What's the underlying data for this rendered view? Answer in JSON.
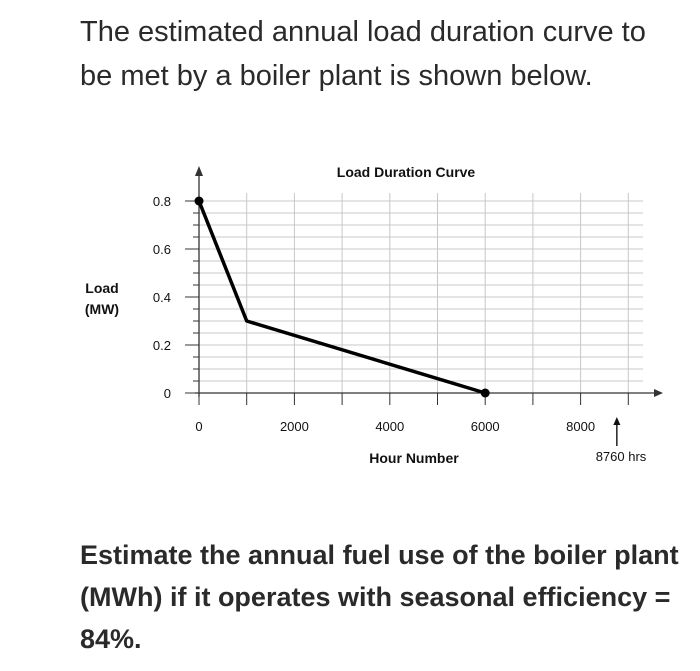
{
  "intro_text": "The estimated annual load duration curve to be met by a boiler plant is shown below.",
  "question_text": "Estimate the annual fuel use of the boiler plant (MWh) if it operates with seasonal efficiency = 84%.",
  "chart_data": {
    "type": "line",
    "title": "Load Duration Curve",
    "xlabel": "Hour Number",
    "ylabel_line1": "Load",
    "ylabel_line2": "(MW)",
    "x_tick_labels": [
      "0",
      "2000",
      "4000",
      "6000",
      "8000"
    ],
    "y_tick_labels": [
      "0",
      "0.2",
      "0.4",
      "0.6",
      "0.8"
    ],
    "annotation": "8760 hrs",
    "annotation_x": 8760,
    "xlim": [
      0,
      9500
    ],
    "ylim": [
      0,
      0.85
    ],
    "grid": true,
    "series": [
      {
        "x": [
          0,
          1000,
          6000
        ],
        "y": [
          0.8,
          0.3,
          0.0
        ]
      }
    ],
    "colors": {
      "line": "#000000",
      "grid": "#c8c8c8",
      "axis": "#333333"
    }
  }
}
